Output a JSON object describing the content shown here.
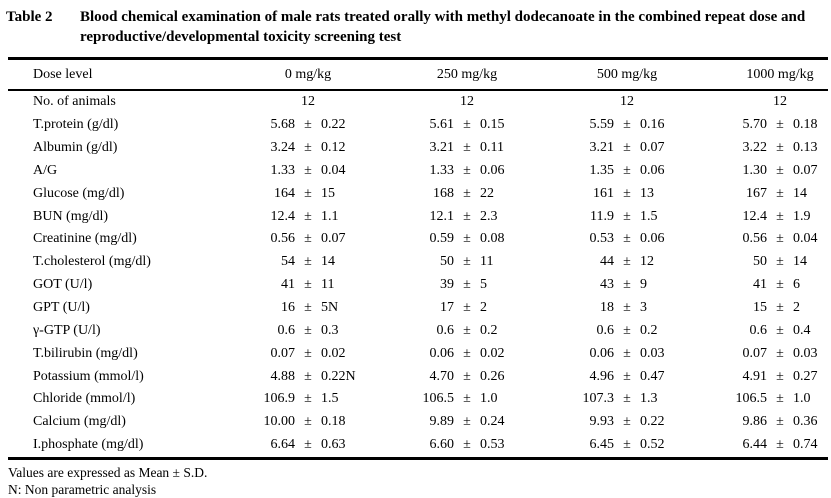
{
  "title": {
    "label": "Table 2",
    "text": "Blood chemical examination of male rats treated orally with methyl dodecanoate in the combined repeat dose and reproductive/developmental toxicity screening test"
  },
  "table": {
    "plus_minus": "±",
    "header": {
      "label": "Dose level",
      "columns": [
        "0 mg/kg",
        "250 mg/kg",
        "500 mg/kg",
        "1000 mg/kg"
      ]
    },
    "animals_row": {
      "label": "No. of animals",
      "values": [
        "12",
        "12",
        "12",
        "12"
      ]
    },
    "rows": [
      {
        "label": "T.protein (g/dl)",
        "values": [
          {
            "mean": "5.68",
            "sd": "0.22"
          },
          {
            "mean": "5.61",
            "sd": "0.15"
          },
          {
            "mean": "5.59",
            "sd": "0.16"
          },
          {
            "mean": "5.70",
            "sd": "0.18"
          }
        ]
      },
      {
        "label": "Albumin (g/dl)",
        "values": [
          {
            "mean": "3.24",
            "sd": "0.12"
          },
          {
            "mean": "3.21",
            "sd": "0.11"
          },
          {
            "mean": "3.21",
            "sd": "0.07"
          },
          {
            "mean": "3.22",
            "sd": "0.13"
          }
        ]
      },
      {
        "label": "A/G",
        "values": [
          {
            "mean": "1.33",
            "sd": "0.04"
          },
          {
            "mean": "1.33",
            "sd": "0.06"
          },
          {
            "mean": "1.35",
            "sd": "0.06"
          },
          {
            "mean": "1.30",
            "sd": "0.07"
          }
        ]
      },
      {
        "label": "Glucose (mg/dl)",
        "values": [
          {
            "mean": "164",
            "sd": "15"
          },
          {
            "mean": "168",
            "sd": "22"
          },
          {
            "mean": "161",
            "sd": "13"
          },
          {
            "mean": "167",
            "sd": "14"
          }
        ]
      },
      {
        "label": "BUN (mg/dl)",
        "values": [
          {
            "mean": "12.4",
            "sd": "1.1"
          },
          {
            "mean": "12.1",
            "sd": "2.3"
          },
          {
            "mean": "11.9",
            "sd": "1.5"
          },
          {
            "mean": "12.4",
            "sd": "1.9"
          }
        ]
      },
      {
        "label": "Creatinine (mg/dl)",
        "values": [
          {
            "mean": "0.56",
            "sd": "0.07"
          },
          {
            "mean": "0.59",
            "sd": "0.08"
          },
          {
            "mean": "0.53",
            "sd": "0.06"
          },
          {
            "mean": "0.56",
            "sd": "0.04"
          }
        ]
      },
      {
        "label": "T.cholesterol (mg/dl)",
        "values": [
          {
            "mean": "54",
            "sd": "14"
          },
          {
            "mean": "50",
            "sd": "11"
          },
          {
            "mean": "44",
            "sd": "12"
          },
          {
            "mean": "50",
            "sd": "14"
          }
        ]
      },
      {
        "label": "GOT (U/l)",
        "values": [
          {
            "mean": "41",
            "sd": "11"
          },
          {
            "mean": "39",
            "sd": "5"
          },
          {
            "mean": "43",
            "sd": "9"
          },
          {
            "mean": "41",
            "sd": "6"
          }
        ]
      },
      {
        "label": "GPT (U/l)",
        "values": [
          {
            "mean": "16",
            "sd": "5N"
          },
          {
            "mean": "17",
            "sd": "2"
          },
          {
            "mean": "18",
            "sd": "3"
          },
          {
            "mean": "15",
            "sd": "2"
          }
        ]
      },
      {
        "label": "γ-GTP (U/l)",
        "values": [
          {
            "mean": "0.6",
            "sd": "0.3"
          },
          {
            "mean": "0.6",
            "sd": "0.2"
          },
          {
            "mean": "0.6",
            "sd": "0.2"
          },
          {
            "mean": "0.6",
            "sd": "0.4"
          }
        ]
      },
      {
        "label": "T.bilirubin (mg/dl)",
        "values": [
          {
            "mean": "0.07",
            "sd": "0.02"
          },
          {
            "mean": "0.06",
            "sd": "0.02"
          },
          {
            "mean": "0.06",
            "sd": "0.03"
          },
          {
            "mean": "0.07",
            "sd": "0.03"
          }
        ]
      },
      {
        "label": "Potassium (mmol/l)",
        "values": [
          {
            "mean": "4.88",
            "sd": "0.22N"
          },
          {
            "mean": "4.70",
            "sd": "0.26"
          },
          {
            "mean": "4.96",
            "sd": "0.47"
          },
          {
            "mean": "4.91",
            "sd": "0.27"
          }
        ]
      },
      {
        "label": "Chloride (mmol/l)",
        "values": [
          {
            "mean": "106.9",
            "sd": "1.5"
          },
          {
            "mean": "106.5",
            "sd": "1.0"
          },
          {
            "mean": "107.3",
            "sd": "1.3"
          },
          {
            "mean": "106.5",
            "sd": "1.0"
          }
        ]
      },
      {
        "label": "Calcium (mg/dl)",
        "values": [
          {
            "mean": "10.00",
            "sd": "0.18"
          },
          {
            "mean": "9.89",
            "sd": "0.24"
          },
          {
            "mean": "9.93",
            "sd": "0.22"
          },
          {
            "mean": "9.86",
            "sd": "0.36"
          }
        ]
      },
      {
        "label": "I.phosphate (mg/dl)",
        "values": [
          {
            "mean": "6.64",
            "sd": "0.63"
          },
          {
            "mean": "6.60",
            "sd": "0.53"
          },
          {
            "mean": "6.45",
            "sd": "0.52"
          },
          {
            "mean": "6.44",
            "sd": "0.74"
          }
        ]
      }
    ]
  },
  "footnotes": [
    "Values are expressed as Mean ± S.D.",
    "N: Non parametric analysis"
  ]
}
